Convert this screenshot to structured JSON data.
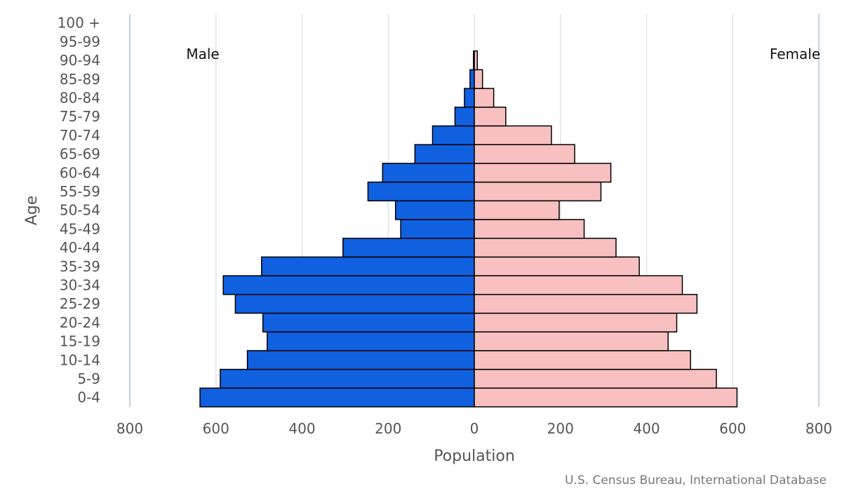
{
  "chart_data": {
    "type": "bar",
    "orientation": "horizontal",
    "categories": [
      "0-4",
      "5-9",
      "10-14",
      "15-19",
      "20-24",
      "25-29",
      "30-34",
      "35-39",
      "40-44",
      "45-49",
      "50-54",
      "55-59",
      "60-64",
      "65-69",
      "70-74",
      "75-79",
      "80-84",
      "85-89",
      "90-94",
      "95-99",
      "100 +"
    ],
    "series": [
      {
        "name": "Male",
        "values": [
          637,
          590,
          527,
          481,
          491,
          555,
          583,
          494,
          305,
          171,
          183,
          247,
          213,
          138,
          97,
          45,
          23,
          10,
          2,
          0,
          0
        ]
      },
      {
        "name": "Female",
        "values": [
          610,
          562,
          502,
          450,
          470,
          517,
          483,
          383,
          329,
          255,
          197,
          294,
          317,
          233,
          179,
          73,
          45,
          19,
          7,
          0,
          0
        ]
      }
    ],
    "xlabel": "Population",
    "ylabel": "Age",
    "xlim": [
      -800,
      800
    ],
    "x_ticks": [
      "800",
      "600",
      "400",
      "200",
      "0",
      "200",
      "400",
      "600",
      "800"
    ],
    "grid": true,
    "colors": {
      "Male": "#1060e0",
      "Female": "#f8c0c0",
      "outline": "#000000",
      "grid": "#dde3ea"
    },
    "source": "U.S. Census Bureau, International Database"
  }
}
